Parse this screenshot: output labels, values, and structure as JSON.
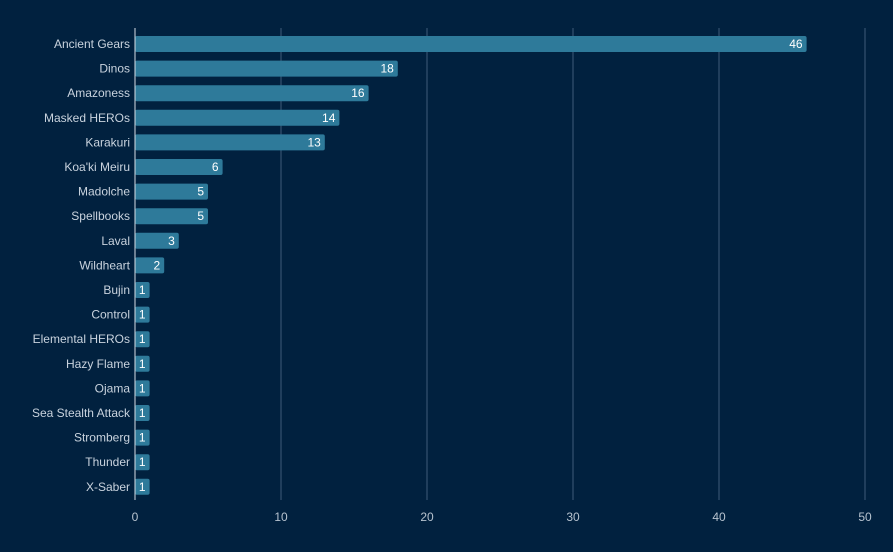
{
  "colors": {
    "background": "#01213f",
    "bar": "#2e7a9a",
    "grid": "#3e5a78",
    "axis": "#d6dde6",
    "label_text": "#c9d3de",
    "value_text": "#ffffff"
  },
  "chart_data": {
    "type": "bar",
    "orientation": "horizontal",
    "title": "",
    "xlabel": "",
    "ylabel": "",
    "xlim": [
      0,
      50
    ],
    "x_ticks": [
      0,
      10,
      20,
      30,
      40,
      50
    ],
    "grid": true,
    "legend": "none",
    "categories": [
      "Ancient Gears",
      "Dinos",
      "Amazoness",
      "Masked HEROs",
      "Karakuri",
      "Koa'ki Meiru",
      "Madolche",
      "Spellbooks",
      "Laval",
      "Wildheart",
      "Bujin",
      "Control",
      "Elemental HEROs",
      "Hazy Flame",
      "Ojama",
      "Sea Stealth Attack",
      "Stromberg",
      "Thunder",
      "X-Saber"
    ],
    "values": [
      46,
      18,
      16,
      14,
      13,
      6,
      5,
      5,
      3,
      2,
      1,
      1,
      1,
      1,
      1,
      1,
      1,
      1,
      1
    ]
  }
}
